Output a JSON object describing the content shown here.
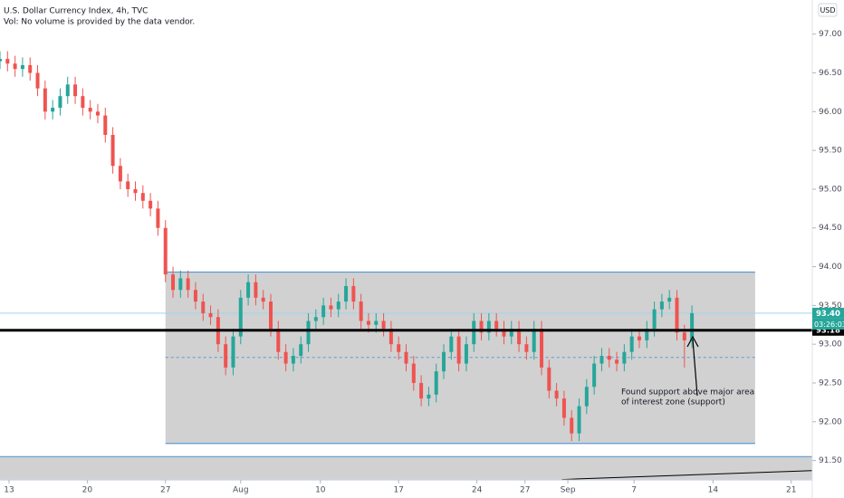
{
  "chart_data": {
    "type": "candlestick",
    "title": "U.S. Dollar Currency Index, 4h, TVC",
    "subtitle": "Vol: No volume is provided by the data vendor.",
    "currency": "USD",
    "up_color": "#26a69a",
    "down_color": "#ef5350",
    "xlim": [
      0,
      108
    ],
    "ylim": [
      91.25,
      97.44
    ],
    "xticks": [
      {
        "value": 1.2,
        "label": "13"
      },
      {
        "value": 11.6,
        "label": "20"
      },
      {
        "value": 22,
        "label": "27"
      },
      {
        "value": 32,
        "label": "Aug"
      },
      {
        "value": 42.6,
        "label": "10"
      },
      {
        "value": 53,
        "label": "17"
      },
      {
        "value": 63.4,
        "label": "24"
      },
      {
        "value": 69.8,
        "label": "27"
      },
      {
        "value": 75.5,
        "label": "Sep"
      },
      {
        "value": 84.3,
        "label": "7"
      },
      {
        "value": 94.8,
        "label": "14"
      },
      {
        "value": 105.2,
        "label": "21"
      }
    ],
    "yticks": [
      {
        "value": 97,
        "label": "97.00"
      },
      {
        "value": 96.5,
        "label": "96.50"
      },
      {
        "value": 96,
        "label": "96.00"
      },
      {
        "value": 95.5,
        "label": "95.50"
      },
      {
        "value": 95,
        "label": "95.00"
      },
      {
        "value": 94.5,
        "label": "94.50"
      },
      {
        "value": 94,
        "label": "94.00"
      },
      {
        "value": 93.5,
        "label": "93.50"
      },
      {
        "value": 93,
        "label": "93.00"
      },
      {
        "value": 92.5,
        "label": "92.50"
      },
      {
        "value": 92,
        "label": "92.00"
      },
      {
        "value": 91.5,
        "label": "91.50"
      }
    ],
    "open": [
      96.65,
      96.68,
      96.62,
      96.55,
      96.6,
      96.5,
      96.3,
      96.0,
      96.05,
      96.2,
      96.35,
      96.2,
      96.05,
      96.0,
      95.95,
      95.7,
      95.3,
      95.1,
      95.0,
      94.95,
      94.85,
      94.75,
      94.5,
      93.9,
      93.7,
      93.85,
      93.7,
      93.55,
      93.4,
      93.35,
      93.0,
      92.7,
      93.1,
      93.6,
      93.8,
      93.6,
      93.55,
      93.2,
      92.9,
      92.75,
      92.85,
      93.0,
      93.3,
      93.35,
      93.5,
      93.45,
      93.55,
      93.75,
      93.55,
      93.3,
      93.25,
      93.3,
      93.2,
      93.0,
      92.9,
      92.75,
      92.5,
      92.3,
      92.35,
      92.65,
      92.9,
      93.1,
      92.75,
      93.0,
      93.3,
      93.15,
      93.3,
      93.2,
      93.1,
      93.2,
      93.0,
      92.9,
      93.2,
      92.7,
      92.4,
      92.3,
      92.05,
      91.85,
      92.2,
      92.45,
      92.75,
      92.85,
      92.8,
      92.75,
      92.9,
      93.1,
      93.05,
      93.2,
      93.45,
      93.55,
      93.6,
      93.15,
      93.05
    ],
    "high": [
      96.78,
      96.78,
      96.72,
      96.7,
      96.7,
      96.6,
      96.4,
      96.15,
      96.3,
      96.45,
      96.45,
      96.3,
      96.15,
      96.1,
      96.05,
      95.8,
      95.4,
      95.2,
      95.1,
      95.05,
      94.95,
      94.85,
      94.6,
      94.0,
      93.95,
      93.95,
      93.8,
      93.65,
      93.5,
      93.45,
      93.1,
      93.2,
      93.7,
      93.9,
      93.9,
      93.7,
      93.65,
      93.3,
      93.0,
      92.95,
      93.1,
      93.4,
      93.45,
      93.6,
      93.6,
      93.65,
      93.85,
      93.85,
      93.65,
      93.4,
      93.4,
      93.4,
      93.3,
      93.1,
      93.0,
      92.85,
      92.6,
      92.45,
      92.75,
      93.0,
      93.2,
      93.2,
      93.1,
      93.4,
      93.4,
      93.4,
      93.4,
      93.3,
      93.3,
      93.3,
      93.1,
      93.3,
      93.3,
      92.8,
      92.5,
      92.4,
      92.15,
      92.3,
      92.55,
      92.85,
      92.95,
      92.95,
      92.9,
      93.0,
      93.2,
      93.2,
      93.3,
      93.55,
      93.65,
      93.7,
      93.7,
      93.25,
      93.5
    ],
    "low": [
      96.55,
      96.52,
      96.45,
      96.45,
      96.4,
      96.2,
      95.9,
      95.9,
      95.95,
      96.1,
      96.1,
      95.95,
      95.9,
      95.85,
      95.6,
      95.2,
      95.0,
      94.9,
      94.85,
      94.75,
      94.65,
      94.4,
      93.8,
      93.6,
      93.6,
      93.6,
      93.45,
      93.3,
      93.25,
      92.9,
      92.6,
      92.6,
      93.0,
      93.5,
      93.5,
      93.45,
      93.1,
      92.8,
      92.65,
      92.65,
      92.75,
      92.9,
      93.2,
      93.25,
      93.35,
      93.35,
      93.45,
      93.45,
      93.2,
      93.15,
      93.15,
      93.1,
      92.9,
      92.8,
      92.65,
      92.4,
      92.2,
      92.2,
      92.25,
      92.55,
      92.8,
      92.65,
      92.65,
      92.9,
      93.05,
      93.05,
      93.1,
      93.0,
      93.0,
      92.9,
      92.8,
      92.8,
      92.6,
      92.3,
      92.2,
      91.95,
      91.75,
      91.75,
      92.1,
      92.35,
      92.65,
      92.7,
      92.65,
      92.65,
      92.8,
      92.95,
      92.95,
      93.1,
      93.35,
      93.45,
      93.05,
      92.7,
      92.95
    ],
    "close": [
      96.68,
      96.62,
      96.55,
      96.6,
      96.5,
      96.3,
      96.0,
      96.05,
      96.2,
      96.35,
      96.2,
      96.05,
      96.0,
      95.95,
      95.7,
      95.3,
      95.1,
      95.0,
      94.95,
      94.85,
      94.75,
      94.5,
      93.9,
      93.7,
      93.85,
      93.7,
      93.55,
      93.4,
      93.35,
      93.0,
      92.7,
      93.1,
      93.6,
      93.8,
      93.6,
      93.55,
      93.2,
      92.9,
      92.75,
      92.85,
      93.0,
      93.3,
      93.35,
      93.5,
      93.45,
      93.55,
      93.75,
      93.55,
      93.3,
      93.25,
      93.3,
      93.2,
      93.0,
      92.9,
      92.75,
      92.5,
      92.3,
      92.35,
      92.65,
      92.9,
      93.1,
      92.75,
      93.0,
      93.3,
      93.15,
      93.3,
      93.2,
      93.1,
      93.2,
      93.0,
      92.9,
      93.2,
      92.7,
      92.4,
      92.3,
      92.05,
      91.85,
      92.2,
      92.45,
      92.75,
      92.85,
      92.8,
      92.75,
      92.9,
      93.1,
      93.05,
      93.2,
      93.45,
      93.55,
      93.6,
      93.15,
      93.05,
      93.4
    ],
    "zones": [
      {
        "x": [
          22,
          100.4
        ],
        "y": [
          91.72,
          93.93
        ]
      },
      {
        "x": [
          0,
          108
        ],
        "y": [
          91.25,
          91.55
        ]
      }
    ],
    "support_line": 93.18,
    "dashed_line": {
      "x": [
        22,
        100.4
      ],
      "value": 92.83
    },
    "trendline": {
      "x": [
        74.7,
        108
      ],
      "y": [
        91.255,
        91.37
      ]
    },
    "price_labels": [
      {
        "value": 93.4,
        "label": "93.40",
        "color": "#26a69a"
      },
      {
        "value": 93.18,
        "label": "93.18",
        "color": "#000000"
      }
    ],
    "countdown": "03:26:03",
    "annotation": [
      "Found support above major area",
      "of interest zone (support)"
    ]
  }
}
